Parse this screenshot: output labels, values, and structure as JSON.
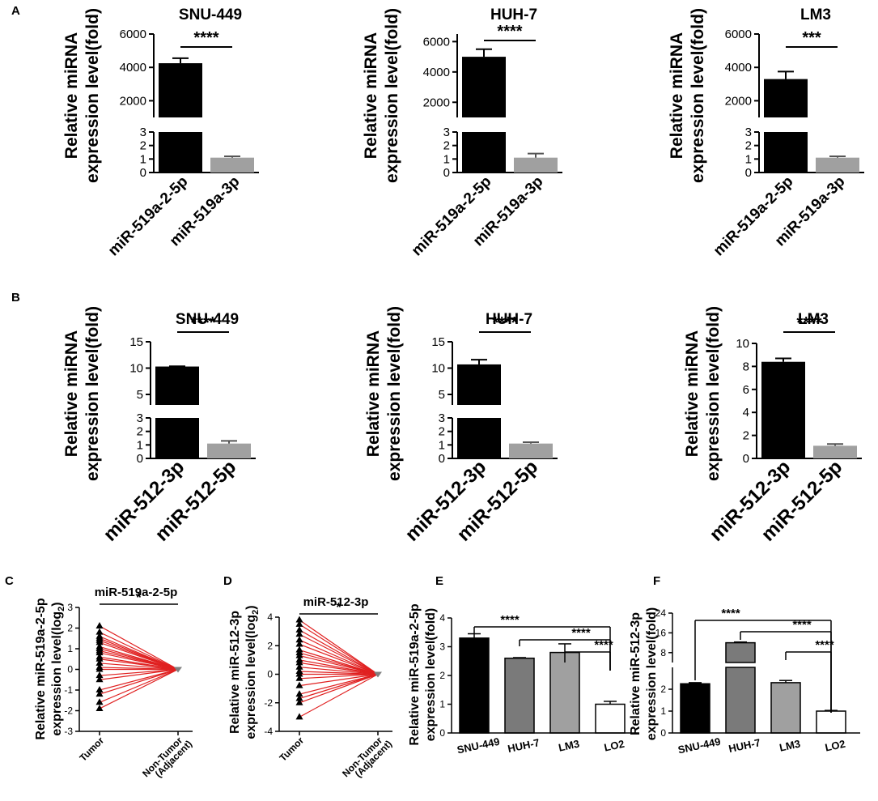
{
  "figure": {
    "panel_labels": [
      "A",
      "B",
      "C",
      "D",
      "E",
      "F"
    ]
  },
  "colors": {
    "black": "#000000",
    "gray": "#a0a0a0",
    "dark_gray": "#7a7a7a",
    "white": "#ffffff",
    "line_red": "#e02020",
    "marker_gray": "#808080"
  },
  "chart_data": [
    {
      "panel": "A",
      "type": "bar",
      "title": "SNU-449",
      "ylabel": [
        "Relative miRNA",
        "expression level(fold)"
      ],
      "categories": [
        "miR-519a-2-5p",
        "miR-519a-3p"
      ],
      "values": [
        4250,
        1.1
      ],
      "errors": [
        300,
        0.1
      ],
      "bar_colors": [
        "#000000",
        "#a0a0a0"
      ],
      "broken_axis": {
        "lower": [
          0,
          3
        ],
        "lower_ticks": [
          "0",
          "1",
          "2",
          "3"
        ],
        "upper": [
          1000,
          6000
        ],
        "upper_ticks": [
          "2000",
          "4000",
          "6000"
        ]
      },
      "significance": "****"
    },
    {
      "panel": "A",
      "type": "bar",
      "title": "HUH-7",
      "ylabel": [
        "Relative miRNA",
        "expression level(fold)"
      ],
      "categories": [
        "miR-519a-2-5p",
        "miR-519a-3p"
      ],
      "values": [
        5000,
        1.1
      ],
      "errors": [
        500,
        0.3
      ],
      "bar_colors": [
        "#000000",
        "#a0a0a0"
      ],
      "broken_axis": {
        "lower": [
          0,
          3
        ],
        "lower_ticks": [
          "0",
          "1",
          "2",
          "3"
        ],
        "upper": [
          1000,
          6500
        ],
        "upper_ticks": [
          "2000",
          "4000",
          "6000"
        ]
      },
      "significance": "****"
    },
    {
      "panel": "A",
      "type": "bar",
      "title": "LM3",
      "ylabel": [
        "Relative miRNA",
        "expression level(fold)"
      ],
      "categories": [
        "miR-519a-2-5p",
        "miR-519a-3p"
      ],
      "values": [
        3300,
        1.1
      ],
      "errors": [
        450,
        0.1
      ],
      "bar_colors": [
        "#000000",
        "#a0a0a0"
      ],
      "broken_axis": {
        "lower": [
          0,
          3
        ],
        "lower_ticks": [
          "0",
          "1",
          "2",
          "3"
        ],
        "upper": [
          1000,
          6000
        ],
        "upper_ticks": [
          "2000",
          "4000",
          "6000"
        ]
      },
      "significance": "***"
    },
    {
      "panel": "B",
      "type": "bar",
      "title": "SNU-449",
      "ylabel": [
        "Relative miRNA",
        "expression level(fold)"
      ],
      "categories": [
        "miR-512-3p",
        "miR-512-5p"
      ],
      "values": [
        10.3,
        1.1
      ],
      "errors": [
        0.05,
        0.2
      ],
      "bar_colors": [
        "#000000",
        "#a0a0a0"
      ],
      "broken_axis": {
        "lower": [
          0,
          3
        ],
        "lower_ticks": [
          "0",
          "1",
          "2",
          "3"
        ],
        "upper": [
          3,
          15
        ],
        "upper_ticks": [
          "5",
          "10",
          "15"
        ]
      },
      "significance": "****"
    },
    {
      "panel": "B",
      "type": "bar",
      "title": "HUH-7",
      "ylabel": [
        "Relative miRNA",
        "expression level(fold)"
      ],
      "categories": [
        "miR-512-3p",
        "miR-512-5p"
      ],
      "values": [
        10.7,
        1.1
      ],
      "errors": [
        0.9,
        0.1
      ],
      "bar_colors": [
        "#000000",
        "#a0a0a0"
      ],
      "broken_axis": {
        "lower": [
          0,
          3
        ],
        "lower_ticks": [
          "0",
          "1",
          "2",
          "3"
        ],
        "upper": [
          3,
          15
        ],
        "upper_ticks": [
          "5",
          "10",
          "15"
        ]
      },
      "significance": "****"
    },
    {
      "panel": "B",
      "type": "bar",
      "title": "LM3",
      "ylabel": [
        "Relative miRNA",
        "expression level(fold)"
      ],
      "categories": [
        "miR-512-3p",
        "miR-512-5p"
      ],
      "values": [
        8.4,
        1.1
      ],
      "errors": [
        0.3,
        0.15
      ],
      "bar_colors": [
        "#000000",
        "#a0a0a0"
      ],
      "ylim": [
        0,
        10
      ],
      "yticks": [
        "0",
        "2",
        "4",
        "6",
        "8",
        "10"
      ],
      "significance": "****"
    },
    {
      "panel": "C",
      "type": "paired_scatter",
      "title": "miR-519a-2-5p",
      "ylabel": [
        "Relative miR-519a-2-5p",
        "expression level(log",
        "2",
        ")"
      ],
      "categories": [
        "Tumor",
        "Non-Tumor",
        "(Adjacent)"
      ],
      "ylim": [
        -3,
        3
      ],
      "yticks": [
        "-3",
        "-2",
        "-1",
        "0",
        "1",
        "2",
        "3"
      ],
      "tumor_values": [
        2.1,
        1.8,
        1.6,
        1.5,
        1.4,
        1.3,
        1.1,
        1.0,
        0.9,
        0.8,
        0.6,
        0.5,
        0.3,
        0.1,
        0.0,
        -0.3,
        -0.5,
        -1.0,
        -1.2,
        -1.6,
        -1.9
      ],
      "adjacent_value": 0.0,
      "significance": "*"
    },
    {
      "panel": "D",
      "type": "paired_scatter",
      "title": "miR-512-3p",
      "ylabel": [
        "Relative miR-512-3p",
        "expression level(log",
        "2",
        ")"
      ],
      "categories": [
        "Tumor",
        "Non-Tumor",
        "(Adjacent)"
      ],
      "ylim": [
        -4,
        4
      ],
      "yticks": [
        "-4",
        "-2",
        "0",
        "2",
        "4"
      ],
      "tumor_values": [
        3.8,
        3.5,
        3.1,
        2.8,
        2.4,
        2.1,
        1.7,
        1.5,
        1.3,
        1.0,
        0.8,
        0.5,
        0.2,
        0.0,
        -0.3,
        -0.8,
        -1.4,
        -1.7,
        -2.0,
        -3.0
      ],
      "adjacent_value": 0.0,
      "significance": "*"
    },
    {
      "panel": "E",
      "type": "bar",
      "title": "",
      "ylabel": [
        "Relative miR-519a-2-5p",
        "expression level(fold)"
      ],
      "categories": [
        "SNU-449",
        "HUH-7",
        "LM3",
        "LO2"
      ],
      "values": [
        3.3,
        2.6,
        2.8,
        1.0
      ],
      "errors": [
        0.15,
        0.02,
        0.3,
        0.1
      ],
      "bar_colors": [
        "#000000",
        "#7a7a7a",
        "#a0a0a0",
        "#ffffff"
      ],
      "ylim": [
        0,
        4
      ],
      "yticks": [
        "0",
        "1",
        "2",
        "3",
        "4"
      ],
      "comparisons": [
        {
          "from": 0,
          "to": 3,
          "label": "****"
        },
        {
          "from": 1,
          "to": 3,
          "label": "****"
        },
        {
          "from": 2,
          "to": 3,
          "label": "****"
        }
      ]
    },
    {
      "panel": "F",
      "type": "bar",
      "title": "",
      "ylabel": [
        "Relative miR-512-3p",
        "expression level(fold)"
      ],
      "categories": [
        "SNU-449",
        "HUH-7",
        "LM3",
        "LO2"
      ],
      "values": [
        2.25,
        12,
        2.3,
        1.0
      ],
      "errors": [
        0.05,
        0.3,
        0.1,
        0.03
      ],
      "bar_colors": [
        "#000000",
        "#7a7a7a",
        "#a0a0a0",
        "#ffffff"
      ],
      "broken_axis": {
        "lower": [
          0,
          3
        ],
        "lower_ticks": [
          "0",
          "1",
          "2"
        ],
        "upper": [
          4,
          24
        ],
        "upper_ticks": [
          "8",
          "16",
          "24"
        ]
      },
      "comparisons": [
        {
          "from": 0,
          "to": 3,
          "label": "****"
        },
        {
          "from": 1,
          "to": 3,
          "label": "****"
        },
        {
          "from": 2,
          "to": 3,
          "label": "****"
        }
      ]
    }
  ]
}
